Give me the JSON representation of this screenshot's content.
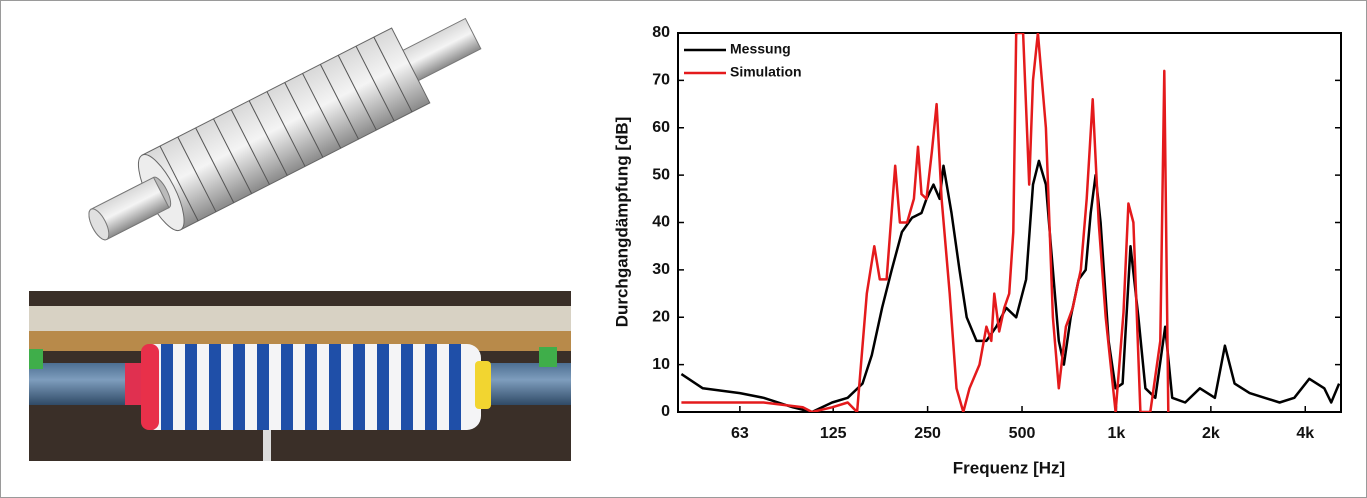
{
  "chart_data": {
    "type": "line",
    "x_label": "Frequenz [Hz]",
    "y_label": "Durchgangdämpfung [dB]",
    "xscale": "log",
    "xlim": [
      40,
      5200
    ],
    "ylim": [
      0,
      80
    ],
    "xticks": [
      63,
      125,
      250,
      500,
      {
        "value": 1000,
        "label": "1k"
      },
      {
        "value": 2000,
        "label": "2k"
      },
      {
        "value": 4000,
        "label": "4k"
      }
    ],
    "yticks": [
      0,
      10,
      20,
      30,
      40,
      50,
      60,
      70,
      80
    ],
    "legend": "upper left",
    "series": [
      {
        "name": "Messung",
        "color": "#000000",
        "x": [
          41,
          48,
          63,
          75,
          93,
          107,
          124,
          139,
          155,
          166,
          179,
          192,
          207,
          223,
          239,
          248,
          261,
          273,
          281,
          298,
          316,
          333,
          358,
          385,
          414,
          445,
          479,
          515,
          542,
          566,
          596,
          618,
          655,
          680,
          715,
          758,
          798,
          828,
          858,
          890,
          944,
          994,
          1046,
          1109,
          1175,
          1237,
          1330,
          1430,
          1506,
          1657,
          1846,
          2060,
          2218,
          2381,
          2659,
          2967,
          3314,
          3692,
          4120,
          4599,
          4838,
          5128
        ],
        "values": [
          8,
          5,
          4,
          3,
          1,
          0,
          2,
          3,
          6,
          12,
          22,
          30,
          38,
          41,
          42,
          45,
          48,
          45,
          52,
          42,
          30,
          20,
          15,
          15,
          18,
          22,
          20,
          28,
          48,
          53,
          48,
          35,
          15,
          10,
          20,
          28,
          30,
          42,
          50,
          40,
          15,
          5,
          6,
          35,
          20,
          5,
          3,
          18,
          3,
          2,
          5,
          3,
          14,
          6,
          4,
          3,
          2,
          3,
          7,
          5,
          2,
          6
        ]
      },
      {
        "name": "Simulation",
        "color": "#e41a1c",
        "x": [
          41,
          75,
          100,
          107,
          124,
          139,
          149,
          160,
          169,
          176,
          185,
          197,
          204,
          215,
          226,
          233,
          239,
          248,
          258,
          267,
          277,
          294,
          309,
          325,
          340,
          366,
          385,
          399,
          408,
          423,
          439,
          455,
          469,
          479,
          504,
          527,
          542,
          562,
          596,
          627,
          655,
          690,
          726,
          770,
          804,
          840,
          878,
          924,
          994,
          1053,
          1092,
          1133,
          1192,
          1282,
          1380,
          1421,
          1463
        ],
        "values": [
          2,
          2,
          1,
          0,
          1,
          2,
          0,
          25,
          35,
          28,
          28,
          52,
          40,
          40,
          45,
          56,
          46,
          45,
          55,
          65,
          45,
          25,
          5,
          0,
          5,
          10,
          18,
          15,
          25,
          17,
          22,
          25,
          38,
          80,
          80,
          48,
          70,
          80,
          60,
          20,
          5,
          18,
          22,
          30,
          45,
          66,
          40,
          20,
          0,
          21,
          44,
          40,
          0,
          0,
          15,
          72,
          0
        ]
      }
    ]
  }
}
